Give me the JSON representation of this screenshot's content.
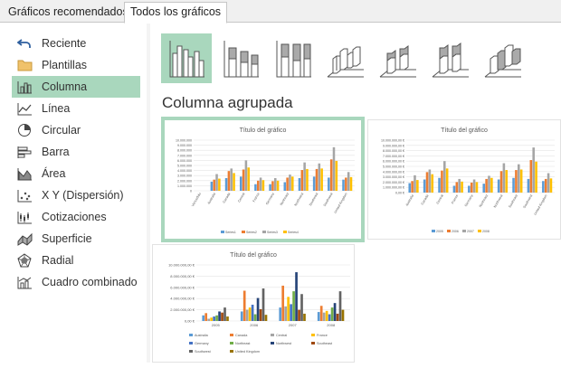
{
  "tabs": [
    {
      "label": "Gráficos recomendados"
    },
    {
      "label": "Todos los gráficos"
    }
  ],
  "sidebar": {
    "items": [
      {
        "label": "Reciente",
        "icon": "undo-arrow-icon"
      },
      {
        "label": "Plantillas",
        "icon": "folder-icon"
      },
      {
        "label": "Columna",
        "icon": "column-chart-icon"
      },
      {
        "label": "Línea",
        "icon": "line-chart-icon"
      },
      {
        "label": "Circular",
        "icon": "pie-chart-icon"
      },
      {
        "label": "Barra",
        "icon": "bar-chart-icon"
      },
      {
        "label": "Área",
        "icon": "area-chart-icon"
      },
      {
        "label": "X Y (Dispersión)",
        "icon": "scatter-chart-icon"
      },
      {
        "label": "Cotizaciones",
        "icon": "stock-chart-icon"
      },
      {
        "label": "Superficie",
        "icon": "surface-chart-icon"
      },
      {
        "label": "Radial",
        "icon": "radar-chart-icon"
      },
      {
        "label": "Cuadro combinado",
        "icon": "combo-chart-icon"
      }
    ],
    "selected": "Columna"
  },
  "section_title": "Columna agrupada",
  "colors": {
    "accent": "#a9d7bd",
    "s1": "#5b9bd5",
    "s2": "#ed7d31",
    "s3": "#a5a5a5",
    "s4": "#ffc000",
    "s5": "#4472c4",
    "s6": "#70ad47",
    "s7": "#264478",
    "s8": "#9e480e",
    "s9": "#636363",
    "s10": "#997300"
  },
  "chart_data": [
    {
      "type": "bar",
      "title": "Título del gráfico",
      "categories": [
        "Vencedido",
        "Australia",
        "Canada",
        "Central",
        "France",
        "Germany",
        "Northeast",
        "Northwest",
        "Southeast",
        "Southwest",
        "United Kingdom"
      ],
      "ylim": [
        0,
        10000000
      ],
      "yticks": [
        "10.000.000",
        "9.000.000",
        "8.000.000",
        "7.000.000",
        "6.000.000",
        "5.000.000",
        "4.000.000",
        "3.000.000",
        "2.000.000",
        "1.000.000",
        "0"
      ],
      "series": [
        {
          "name": "Series1",
          "values": [
            0,
            1800000,
            2500000,
            2800000,
            1300000,
            1300000,
            1700000,
            2500000,
            2800000,
            2600000,
            2200000
          ]
        },
        {
          "name": "Series2",
          "values": [
            0,
            2200000,
            3900000,
            4200000,
            2000000,
            1900000,
            2600000,
            4100000,
            4300000,
            6200000,
            2600000
          ]
        },
        {
          "name": "Series3",
          "values": [
            0,
            3300000,
            4400000,
            6000000,
            2600000,
            2500000,
            3200000,
            5600000,
            5400000,
            8600000,
            3700000
          ]
        },
        {
          "name": "Series4",
          "values": [
            0,
            2400000,
            3500000,
            4600000,
            2100000,
            2000000,
            2800000,
            4300000,
            4400000,
            5900000,
            2700000
          ]
        }
      ],
      "legend": "bottom"
    },
    {
      "type": "bar",
      "title": "Título del gráfico",
      "categories": [
        "Australia",
        "Canada",
        "Central",
        "France",
        "Germany",
        "Northeast",
        "Northwest",
        "Southeast",
        "Southwest",
        "United Kingdom"
      ],
      "ylim": [
        0,
        10000000
      ],
      "yticks": [
        "10.000.000,00 €",
        "9.000.000,00 €",
        "8.000.000,00 €",
        "7.000.000,00 €",
        "6.000.000,00 €",
        "5.000.000,00 €",
        "4.000.000,00 €",
        "3.000.000,00 €",
        "2.000.000,00 €",
        "1.000.000,00 €",
        "0,00 €"
      ],
      "series": [
        {
          "name": "2005",
          "values": [
            1800000,
            2500000,
            2800000,
            1300000,
            1300000,
            1700000,
            2500000,
            2800000,
            2600000,
            2200000
          ]
        },
        {
          "name": "2006",
          "values": [
            2200000,
            3900000,
            4200000,
            2000000,
            1900000,
            2600000,
            4100000,
            4300000,
            6200000,
            2600000
          ]
        },
        {
          "name": "2007",
          "values": [
            3300000,
            4400000,
            6000000,
            2600000,
            2500000,
            3200000,
            5600000,
            5400000,
            8600000,
            3700000
          ]
        },
        {
          "name": "2008",
          "values": [
            2400000,
            3500000,
            4600000,
            2100000,
            2000000,
            2800000,
            4300000,
            4400000,
            5900000,
            2700000
          ]
        }
      ],
      "legend": "bottom"
    },
    {
      "type": "bar",
      "title": "Título del gráfico",
      "categories": [
        "2005",
        "2006",
        "2007",
        "2008"
      ],
      "ylim": [
        0,
        10000000
      ],
      "yticks": [
        "10.000.000,00 €",
        "8.000.000,00 €",
        "6.000.000,00 €",
        "4.000.000,00 €",
        "2.000.000,00 €",
        "0,00 €"
      ],
      "series": [
        {
          "name": "Australia",
          "values": [
            1000000,
            1700000,
            2400000,
            1600000
          ]
        },
        {
          "name": "Canada",
          "values": [
            1400000,
            5400000,
            6300000,
            2700000
          ]
        },
        {
          "name": "Central",
          "values": [
            400000,
            2000000,
            2600000,
            1500000
          ]
        },
        {
          "name": "France",
          "values": [
            600000,
            2400000,
            4300000,
            1800000
          ]
        },
        {
          "name": "Germany",
          "values": [
            800000,
            2900000,
            3000000,
            1200000
          ]
        },
        {
          "name": "Northeast",
          "values": [
            1000000,
            1200000,
            5300000,
            2400000
          ]
        },
        {
          "name": "Northwest",
          "values": [
            1700000,
            4100000,
            8700000,
            3200000
          ]
        },
        {
          "name": "Southeast",
          "values": [
            1500000,
            2100000,
            2000000,
            1300000
          ]
        },
        {
          "name": "Southwest",
          "values": [
            2400000,
            5800000,
            4800000,
            5300000
          ]
        },
        {
          "name": "United Kingdom",
          "values": [
            800000,
            1100000,
            1300000,
            2000000
          ]
        }
      ],
      "legend": "bottom"
    }
  ]
}
